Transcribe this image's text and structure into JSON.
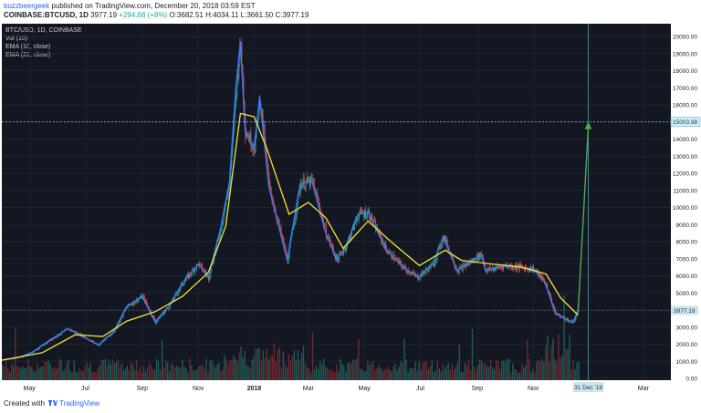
{
  "header": {
    "author": "buzzbeergeek",
    "published": "published on TradingView.com, December 20, 2018 03:59 EST",
    "symbol": "COINBASE:BTCUSD, 1D",
    "last": "3977.19",
    "change": "+294.68 (+8%)",
    "open_label": "O:",
    "open": "3682.51",
    "high_label": "H:",
    "high": "4034.11",
    "low_label": "L:",
    "low": "3661.50",
    "close_label": "C:",
    "close": "3977.19"
  },
  "legend": [
    "BTC/USD, 1D, COINBASE",
    "Vol (10)",
    "EMA (10, close)",
    "EMA (22, close)"
  ],
  "footer": {
    "created_with": "Created with",
    "brand": "TradingView"
  },
  "colors": {
    "background": "#131722",
    "candle_up": "#26a69a",
    "candle_down": "#ef5350",
    "ema10": "#3c7bff",
    "ema22": "#f5e233",
    "projection": "#4caf50",
    "level_line": "#5fb7d4"
  },
  "chart_data": {
    "type": "line",
    "x_tick_labels": [
      "May",
      "Jul",
      "Sep",
      "Nov",
      "2018",
      "Mar",
      "May",
      "Jul",
      "Sep",
      "Nov",
      "Mar"
    ],
    "y_tick_labels": [
      "20000.00",
      "19000.00",
      "18000.00",
      "17000.00",
      "16000.00",
      "15000.00",
      "14000.00",
      "13000.00",
      "12000.00",
      "11000.00",
      "10000.00",
      "9000.00",
      "8000.00",
      "7000.00",
      "6000.00",
      "5000.00",
      "4000.00",
      "3000.00",
      "2000.00",
      "1000.00",
      "0.00"
    ],
    "ylim": [
      0,
      20000
    ],
    "price_label": "3977.19",
    "level_label": "15003.98",
    "date_label": "31 Dec '18",
    "target_level": 15003.98,
    "current_price": 3977.19,
    "price_series": [
      [
        "2017-04-01",
        1080
      ],
      [
        "2017-04-20",
        1220
      ],
      [
        "2017-05-05",
        1550
      ],
      [
        "2017-05-25",
        2300
      ],
      [
        "2017-06-12",
        2900
      ],
      [
        "2017-06-25",
        2550
      ],
      [
        "2017-07-15",
        1950
      ],
      [
        "2017-08-01",
        2750
      ],
      [
        "2017-08-15",
        4200
      ],
      [
        "2017-09-01",
        4800
      ],
      [
        "2017-09-15",
        3300
      ],
      [
        "2017-10-01",
        4300
      ],
      [
        "2017-10-15",
        5600
      ],
      [
        "2017-11-01",
        6700
      ],
      [
        "2017-11-12",
        5900
      ],
      [
        "2017-11-25",
        8700
      ],
      [
        "2017-12-05",
        11500
      ],
      [
        "2017-12-12",
        17000
      ],
      [
        "2017-12-17",
        19700
      ],
      [
        "2017-12-22",
        14500
      ],
      [
        "2018-01-01",
        13500
      ],
      [
        "2018-01-07",
        16500
      ],
      [
        "2018-01-17",
        11200
      ],
      [
        "2018-02-06",
        6900
      ],
      [
        "2018-02-20",
        11400
      ],
      [
        "2018-03-05",
        11500
      ],
      [
        "2018-03-20",
        8500
      ],
      [
        "2018-04-01",
        6900
      ],
      [
        "2018-04-12",
        7900
      ],
      [
        "2018-04-24",
        9600
      ],
      [
        "2018-05-05",
        9700
      ],
      [
        "2018-05-25",
        7500
      ],
      [
        "2018-06-12",
        6500
      ],
      [
        "2018-06-28",
        5900
      ],
      [
        "2018-07-15",
        6700
      ],
      [
        "2018-07-26",
        8300
      ],
      [
        "2018-08-10",
        6300
      ],
      [
        "2018-08-30",
        7000
      ],
      [
        "2018-09-05",
        7300
      ],
      [
        "2018-09-10",
        6300
      ],
      [
        "2018-10-01",
        6600
      ],
      [
        "2018-11-01",
        6400
      ],
      [
        "2018-11-14",
        5600
      ],
      [
        "2018-11-25",
        3800
      ],
      [
        "2018-12-07",
        3450
      ],
      [
        "2018-12-14",
        3250
      ],
      [
        "2018-12-20",
        3977
      ]
    ],
    "ema22_series": [
      [
        "2017-04-01",
        1060
      ],
      [
        "2017-05-15",
        1500
      ],
      [
        "2017-06-20",
        2550
      ],
      [
        "2017-07-20",
        2450
      ],
      [
        "2017-08-15",
        3350
      ],
      [
        "2017-09-15",
        3900
      ],
      [
        "2017-10-15",
        4800
      ],
      [
        "2017-11-12",
        6200
      ],
      [
        "2017-12-01",
        8900
      ],
      [
        "2017-12-17",
        15500
      ],
      [
        "2018-01-01",
        15300
      ],
      [
        "2018-01-15",
        13400
      ],
      [
        "2018-02-08",
        9600
      ],
      [
        "2018-03-01",
        10300
      ],
      [
        "2018-03-20",
        9400
      ],
      [
        "2018-04-08",
        7600
      ],
      [
        "2018-05-05",
        9200
      ],
      [
        "2018-05-30",
        8000
      ],
      [
        "2018-06-30",
        6600
      ],
      [
        "2018-07-28",
        7500
      ],
      [
        "2018-08-15",
        6900
      ],
      [
        "2018-09-15",
        6700
      ],
      [
        "2018-10-20",
        6500
      ],
      [
        "2018-11-15",
        6100
      ],
      [
        "2018-12-01",
        4700
      ],
      [
        "2018-12-20",
        3700
      ]
    ],
    "projection": [
      [
        "2018-12-20",
        3977
      ],
      [
        "2018-12-31",
        15003.98
      ]
    ]
  }
}
